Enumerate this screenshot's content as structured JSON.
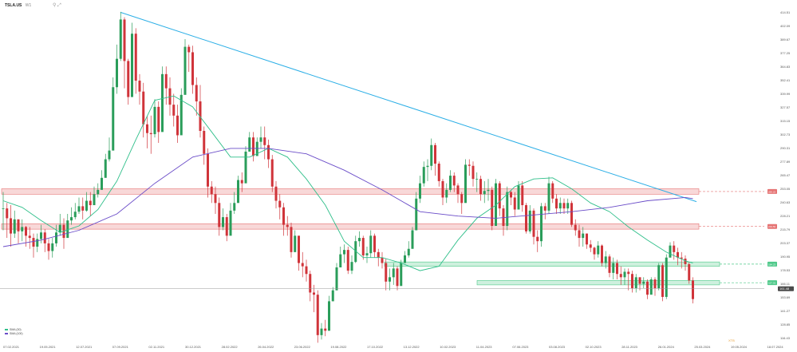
{
  "header": {
    "symbol": "TSLA.US",
    "timeframe": "W1",
    "icons": "⚲  ⤢"
  },
  "legend": [
    {
      "label": "SMA (30)",
      "color": "#2fbf8a"
    },
    {
      "label": "SMA (100)",
      "color": "#6a4cc8"
    }
  ],
  "watermark": "XTB",
  "colors": {
    "price_up": "#2a9d5a",
    "price_down": "#d0343a",
    "sma30": "#2fbf8a",
    "sma100": "#6a4cc8",
    "trendline": "#2aaee6",
    "resistance_zone": "#e57373",
    "support_zone": "#4fc98a",
    "last_price": "#4a4a4a"
  },
  "chart_data": {
    "type": "candlestick",
    "title": "TSLA.US",
    "ylim": [
      114.5,
      420
    ],
    "x_tick_labels": [
      "07.02.2021",
      "19.05.2021",
      "12.07.2021",
      "07.09.2021",
      "02.11.2021",
      "30.12.2021",
      "28.02.2022",
      "26.04.2022",
      "23.06.2022",
      "19.08.2022",
      "17.10.2022",
      "13.12.2022",
      "10.02.2023",
      "11.04.2023",
      "07.06.2023",
      "03.08.2023",
      "02.10.2023",
      "28.11.2023",
      "26.01.2024",
      "25.03.2024",
      "19.05.2024",
      "18.07.2024"
    ],
    "y_tick_labels": [
      {
        "v": 414.51,
        "label": "414.51"
      },
      {
        "v": 402.09,
        "label": "402.09"
      },
      {
        "v": 389.67,
        "label": "389.67"
      },
      {
        "v": 377.25,
        "label": "377.25"
      },
      {
        "v": 364.83,
        "label": "364.83"
      },
      {
        "v": 352.41,
        "label": "352.41"
      },
      {
        "v": 339.99,
        "label": "339.99"
      },
      {
        "v": 327.57,
        "label": "327.57"
      },
      {
        "v": 315.15,
        "label": "315.15"
      },
      {
        "v": 302.73,
        "label": "302.73"
      },
      {
        "v": 290.31,
        "label": "290.31"
      },
      {
        "v": 277.89,
        "label": "277.89"
      },
      {
        "v": 265.47,
        "label": "265.47"
      },
      {
        "v": 253.05,
        "label": "253.05"
      },
      {
        "v": 240.63,
        "label": "240.63"
      },
      {
        "v": 228.21,
        "label": "228.21"
      },
      {
        "v": 215.79,
        "label": "215.79"
      },
      {
        "v": 203.37,
        "label": "203.37"
      },
      {
        "v": 190.95,
        "label": "190.95"
      },
      {
        "v": 178.53,
        "label": "178.53"
      },
      {
        "v": 166.11,
        "label": "166.11"
      },
      {
        "v": 153.69,
        "label": "153.69"
      },
      {
        "v": 141.27,
        "label": "141.27"
      },
      {
        "v": 128.85,
        "label": "128.85"
      },
      {
        "v": 116.43,
        "label": "116.43"
      }
    ],
    "series": [
      {
        "kind": "ohlc",
        "x": [
          0,
          1,
          2,
          3,
          4,
          5,
          6,
          7,
          8,
          9,
          10,
          11,
          12,
          13,
          14,
          15,
          16,
          17,
          18,
          19,
          20,
          21,
          22,
          23,
          24,
          25,
          26,
          27,
          28,
          29,
          30,
          31,
          32,
          33,
          34,
          35,
          36,
          37,
          38,
          39,
          40,
          41,
          42,
          43,
          44,
          45,
          46,
          47,
          48,
          49,
          50,
          51,
          52,
          53,
          54,
          55,
          56,
          57,
          58,
          59,
          60,
          61,
          62,
          63,
          64,
          65,
          66,
          67,
          68,
          69,
          70,
          71,
          72,
          73,
          74,
          75,
          76,
          77,
          78,
          79,
          80,
          81,
          82,
          83,
          84,
          85,
          86,
          87,
          88,
          89,
          90,
          91,
          92,
          93,
          94,
          95,
          96,
          97,
          98,
          99,
          100,
          101,
          102,
          103,
          104,
          105,
          106,
          107,
          108,
          109,
          110,
          111,
          112,
          113,
          114,
          115,
          116,
          117,
          118,
          119,
          120,
          121,
          122,
          123,
          124,
          125,
          126,
          127,
          128,
          129,
          130,
          131,
          132,
          133,
          134,
          135,
          136,
          137,
          138,
          139,
          140,
          141,
          142,
          143,
          144,
          145,
          146,
          147,
          148,
          149,
          150,
          151,
          152,
          153,
          154,
          155,
          156,
          157,
          158,
          159,
          160,
          161,
          162,
          163,
          164,
          165,
          166,
          167,
          168,
          169,
          170,
          171,
          172,
          173,
          174,
          175,
          176,
          177,
          178,
          179,
          180,
          181,
          182
        ],
        "close": [
          235,
          226,
          212,
          225,
          214,
          218,
          210,
          208,
          200,
          207,
          213,
          203,
          196,
          203,
          213,
          220,
          208,
          224,
          227,
          232,
          237,
          233,
          242,
          238,
          248,
          252,
          263,
          280,
          288,
          346,
          372,
          408,
          370,
          337,
          395,
          352,
          342,
          312,
          304,
          303,
          328,
          305,
          358,
          345,
          330,
          320,
          302,
          339,
          383,
          378,
          348,
          333,
          306,
          285,
          255,
          248,
          240,
          218,
          227,
          210,
          233,
          240,
          261,
          258,
          287,
          300,
          283,
          296,
          300,
          293,
          280,
          255,
          242,
          236,
          220,
          218,
          195,
          210,
          185,
          182,
          175,
          158,
          156,
          119,
          125,
          123,
          150,
          160,
          181,
          193,
          197,
          178,
          186,
          205,
          208,
          192,
          194,
          210,
          195,
          190,
          185,
          168,
          172,
          180,
          164,
          185,
          192,
          198,
          215,
          244,
          258,
          273,
          274,
          293,
          276,
          260,
          245,
          252,
          265,
          256,
          248,
          240,
          275,
          274,
          262,
          262,
          248,
          251,
          252,
          219,
          258,
          235,
          219,
          250,
          245,
          234,
          256,
          238,
          214,
          233,
          209,
          205,
          237,
          233,
          258,
          244,
          235,
          240,
          235,
          240,
          220,
          215,
          208,
          212,
          202,
          199,
          193,
          201,
          185,
          191,
          176,
          185,
          175,
          172,
          177,
          175,
          162,
          172,
          166,
          168,
          156,
          170,
          162,
          183,
          154,
          190,
          201,
          195,
          190,
          189,
          184,
          169,
          152
        ],
        "high": [
          250,
          240,
          238,
          233,
          225,
          225,
          219,
          218,
          212,
          212,
          220,
          216,
          207,
          208,
          220,
          230,
          226,
          230,
          236,
          240,
          245,
          245,
          250,
          250,
          255,
          258,
          270,
          285,
          300,
          355,
          385,
          415,
          410,
          372,
          405,
          400,
          358,
          350,
          320,
          320,
          335,
          333,
          365,
          365,
          355,
          340,
          330,
          345,
          390,
          385,
          384,
          355,
          348,
          310,
          290,
          260,
          255,
          245,
          235,
          230,
          240,
          250,
          265,
          268,
          292,
          305,
          305,
          300,
          310,
          310,
          298,
          284,
          260,
          248,
          240,
          228,
          222,
          215,
          210,
          195,
          188,
          178,
          165,
          160,
          130,
          133,
          155,
          163,
          185,
          200,
          202,
          200,
          192,
          210,
          214,
          210,
          200,
          215,
          212,
          198,
          195,
          189,
          180,
          185,
          182,
          188,
          196,
          205,
          218,
          250,
          265,
          278,
          280,
          299,
          295,
          278,
          262,
          258,
          270,
          268,
          258,
          250,
          280,
          280,
          278,
          268,
          265,
          260,
          262,
          255,
          262,
          260,
          238,
          255,
          252,
          250,
          260,
          260,
          240,
          238,
          235,
          215,
          240,
          240,
          264,
          260,
          248,
          245,
          244,
          244,
          242,
          225,
          220,
          218,
          212,
          206,
          200,
          205,
          202,
          196,
          193,
          190,
          188,
          182,
          180,
          180,
          178,
          175,
          172,
          172,
          170,
          172,
          172,
          185,
          185,
          193,
          204,
          205,
          199,
          195,
          192,
          186,
          172
        ],
        "low": [
          215,
          208,
          200,
          208,
          203,
          205,
          200,
          198,
          190,
          195,
          203,
          195,
          188,
          190,
          200,
          210,
          198,
          210,
          220,
          225,
          230,
          225,
          232,
          228,
          240,
          245,
          255,
          270,
          278,
          315,
          340,
          370,
          345,
          330,
          370,
          340,
          330,
          300,
          290,
          285,
          300,
          295,
          330,
          330,
          320,
          310,
          295,
          310,
          340,
          360,
          340,
          320,
          300,
          275,
          245,
          240,
          230,
          210,
          215,
          205,
          220,
          230,
          250,
          250,
          275,
          290,
          278,
          285,
          290,
          280,
          272,
          250,
          235,
          225,
          210,
          210,
          190,
          195,
          178,
          172,
          168,
          150,
          140,
          112,
          115,
          118,
          125,
          150,
          170,
          185,
          185,
          175,
          175,
          185,
          200,
          188,
          185,
          190,
          190,
          182,
          180,
          160,
          160,
          165,
          160,
          165,
          185,
          190,
          200,
          215,
          240,
          255,
          260,
          270,
          265,
          255,
          238,
          240,
          250,
          250,
          240,
          230,
          248,
          265,
          255,
          250,
          242,
          240,
          242,
          215,
          220,
          228,
          210,
          215,
          238,
          228,
          235,
          232,
          212,
          212,
          202,
          195,
          200,
          225,
          230,
          240,
          230,
          230,
          230,
          230,
          218,
          210,
          200,
          200,
          198,
          195,
          188,
          190,
          182,
          180,
          172,
          170,
          170,
          165,
          165,
          160,
          158,
          158,
          160,
          162,
          152,
          160,
          155,
          160,
          150,
          152,
          190,
          188,
          183,
          180,
          178,
          166,
          148
        ]
      },
      {
        "name": "SMA (30)",
        "kind": "line",
        "x": [
          0,
          5,
          10,
          15,
          20,
          25,
          30,
          35,
          40,
          45,
          50,
          55,
          60,
          65,
          70,
          75,
          80,
          85,
          90,
          95,
          100,
          105,
          110,
          115,
          120,
          125,
          130,
          135,
          140,
          145,
          150,
          155,
          160,
          165,
          170,
          175,
          180,
          182
        ],
        "values": [
          242,
          236,
          224,
          213,
          219,
          234,
          260,
          298,
          334,
          338,
          328,
          305,
          282,
          282,
          290,
          282,
          262,
          238,
          205,
          190,
          190,
          185,
          178,
          182,
          206,
          226,
          238,
          255,
          262,
          263,
          253,
          240,
          232,
          218,
          206,
          195,
          187,
          185
        ]
      },
      {
        "name": "SMA (100)",
        "kind": "line",
        "x": [
          0,
          10,
          20,
          30,
          40,
          50,
          60,
          70,
          80,
          90,
          100,
          110,
          120,
          130,
          140,
          150,
          160,
          170,
          180,
          182
        ],
        "values": [
          200,
          206,
          215,
          230,
          258,
          282,
          290,
          290,
          285,
          270,
          252,
          232,
          228,
          226,
          229,
          232,
          236,
          242,
          245,
          244
        ]
      },
      {
        "kind": "trendline",
        "x": [
          31,
          156
        ],
        "values": [
          414.5,
          250
        ]
      }
    ],
    "levels": [
      {
        "kind": "resistance",
        "low": 248,
        "high": 253,
        "label": "250.22"
      },
      {
        "kind": "resistance",
        "low": 216,
        "high": 221,
        "label": "219.50"
      },
      {
        "kind": "support",
        "low": 182,
        "high": 186,
        "label": "184.23"
      },
      {
        "kind": "support",
        "low": 165,
        "high": 169,
        "label": "167.01"
      }
    ],
    "last_price": {
      "value": 161.48,
      "label": "161.48"
    },
    "grid": false
  }
}
